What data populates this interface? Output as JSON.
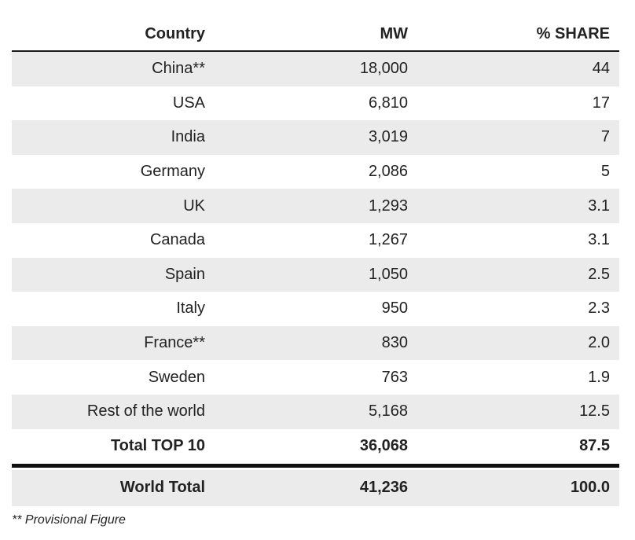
{
  "chart_data": {
    "type": "table",
    "columns": [
      "Country",
      "MW",
      "% SHARE"
    ],
    "rows": [
      {
        "country": "China**",
        "mw": "18,000",
        "share": "44"
      },
      {
        "country": "USA",
        "mw": "6,810",
        "share": "17"
      },
      {
        "country": "India",
        "mw": "3,019",
        "share": "7"
      },
      {
        "country": "Germany",
        "mw": "2,086",
        "share": "5"
      },
      {
        "country": "UK",
        "mw": "1,293",
        "share": "3.1"
      },
      {
        "country": "Canada",
        "mw": "1,267",
        "share": "3.1"
      },
      {
        "country": "Spain",
        "mw": "1,050",
        "share": "2.5"
      },
      {
        "country": "Italy",
        "mw": "950",
        "share": "2.3"
      },
      {
        "country": "France**",
        "mw": "830",
        "share": "2.0"
      },
      {
        "country": "Sweden",
        "mw": "763",
        "share": "1.9"
      },
      {
        "country": "Rest of the world",
        "mw": "5,168",
        "share": "12.5"
      }
    ],
    "total_top10": {
      "country": "Total TOP 10",
      "mw": "36,068",
      "share": "87.5"
    },
    "world_total": {
      "country": "World Total",
      "mw": "41,236",
      "share": "100.0"
    },
    "footnote": "** Provisional Figure"
  }
}
